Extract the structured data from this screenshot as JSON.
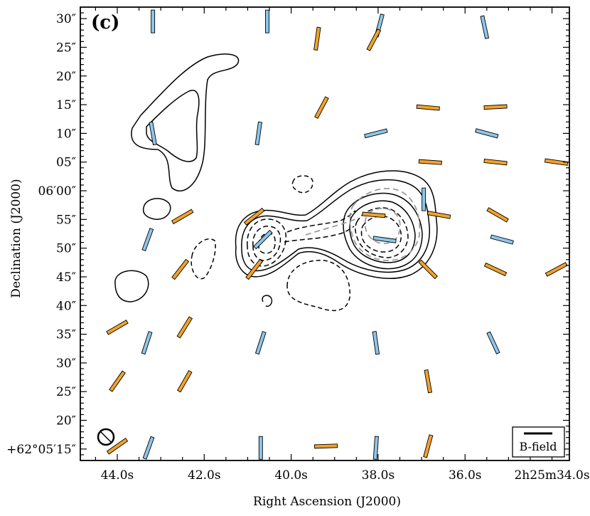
{
  "chart_data": {
    "type": "scatter",
    "panel_label": "(c)",
    "xlabel": "Right Ascension (J2000)",
    "ylabel": "Declination (J2000)",
    "x_ticks": [
      "44.0s",
      "42.0s",
      "40.0s",
      "38.0s",
      "36.0s",
      "2h25m34.0s"
    ],
    "x_tick_values_s": [
      44.0,
      42.0,
      40.0,
      38.0,
      36.0,
      34.0
    ],
    "xlim_s": [
      44.85,
      33.6
    ],
    "y_ticks": [
      "30″",
      "25″",
      "20″",
      "15″",
      "10″",
      "05″",
      "06′00″",
      "55″",
      "50″",
      "45″",
      "40″",
      "35″",
      "30″",
      "25″",
      "20″",
      "+62°05′15″"
    ],
    "y_tick_values_arcsec": [
      390,
      385,
      380,
      375,
      370,
      365,
      360,
      355,
      350,
      345,
      340,
      335,
      330,
      325,
      320,
      315
    ],
    "ylim_arcsec": [
      313,
      392
    ],
    "legend": {
      "label": "B-field",
      "placement": "bottom-right"
    },
    "colors": {
      "blue": "#8ec6ea",
      "orange": "#f2a22c",
      "contour_solid": "#000000",
      "contour_dashed": "#000000",
      "contour_gray": "#9a9a9a",
      "frame": "#000000"
    },
    "vector_series": [
      {
        "color": "blue",
        "vectors": [
          {
            "ra_s": 43.18,
            "dec": 389.5,
            "pa": 0
          },
          {
            "ra_s": 40.55,
            "dec": 389.5,
            "pa": 0
          },
          {
            "ra_s": 37.97,
            "dec": 388.8,
            "pa": 15
          },
          {
            "ra_s": 35.55,
            "dec": 388.5,
            "pa": -12
          },
          {
            "ra_s": 43.18,
            "dec": 370.0,
            "pa": -10
          },
          {
            "ra_s": 40.75,
            "dec": 370.0,
            "pa": 8
          },
          {
            "ra_s": 38.05,
            "dec": 370.0,
            "pa": 76
          },
          {
            "ra_s": 35.5,
            "dec": 370.0,
            "pa": -75
          },
          {
            "ra_s": 43.3,
            "dec": 351.5,
            "pa": 20
          },
          {
            "ra_s": 40.65,
            "dec": 351.5,
            "pa": 45
          },
          {
            "ra_s": 37.85,
            "dec": 351.5,
            "pa": -82
          },
          {
            "ra_s": 35.15,
            "dec": 351.5,
            "pa": -75
          },
          {
            "ra_s": 43.32,
            "dec": 333.5,
            "pa": 18
          },
          {
            "ra_s": 40.7,
            "dec": 333.5,
            "pa": 18
          },
          {
            "ra_s": 38.05,
            "dec": 333.5,
            "pa": -8
          },
          {
            "ra_s": 35.35,
            "dec": 333.5,
            "pa": -25
          },
          {
            "ra_s": 43.28,
            "dec": 315.2,
            "pa": 20
          },
          {
            "ra_s": 40.7,
            "dec": 315.2,
            "pa": 0
          },
          {
            "ra_s": 38.05,
            "dec": 315.2,
            "pa": 4
          },
          {
            "ra_s": 36.95,
            "dec": 358.5,
            "pa": 0
          }
        ]
      },
      {
        "color": "orange",
        "vectors": [
          {
            "ra_s": 39.4,
            "dec": 386.5,
            "pa": 8
          },
          {
            "ra_s": 38.1,
            "dec": 386.3,
            "pa": 28
          },
          {
            "ra_s": 39.3,
            "dec": 374.5,
            "pa": 28
          },
          {
            "ra_s": 36.85,
            "dec": 374.5,
            "pa": -85
          },
          {
            "ra_s": 35.3,
            "dec": 374.6,
            "pa": 87
          },
          {
            "ra_s": 36.8,
            "dec": 365.0,
            "pa": -86
          },
          {
            "ra_s": 35.3,
            "dec": 365.0,
            "pa": -84
          },
          {
            "ra_s": 33.9,
            "dec": 365.0,
            "pa": -82
          },
          {
            "ra_s": 42.5,
            "dec": 355.5,
            "pa": 60
          },
          {
            "ra_s": 40.85,
            "dec": 355.5,
            "pa": 52
          },
          {
            "ra_s": 38.1,
            "dec": 355.8,
            "pa": -85
          },
          {
            "ra_s": 36.6,
            "dec": 355.8,
            "pa": -80
          },
          {
            "ra_s": 35.25,
            "dec": 355.8,
            "pa": -60
          },
          {
            "ra_s": 42.55,
            "dec": 346.3,
            "pa": 38
          },
          {
            "ra_s": 40.85,
            "dec": 346.3,
            "pa": 38
          },
          {
            "ra_s": 36.85,
            "dec": 346.3,
            "pa": -45
          },
          {
            "ra_s": 35.3,
            "dec": 346.3,
            "pa": -65
          },
          {
            "ra_s": 33.9,
            "dec": 346.3,
            "pa": 62
          },
          {
            "ra_s": 44.0,
            "dec": 336.2,
            "pa": 60
          },
          {
            "ra_s": 42.45,
            "dec": 336.2,
            "pa": 32
          },
          {
            "ra_s": 44.0,
            "dec": 326.8,
            "pa": 35
          },
          {
            "ra_s": 42.45,
            "dec": 326.8,
            "pa": 30
          },
          {
            "ra_s": 36.85,
            "dec": 326.8,
            "pa": -10
          },
          {
            "ra_s": 44.0,
            "dec": 315.5,
            "pa": 55
          },
          {
            "ra_s": 39.2,
            "dec": 315.5,
            "pa": 88
          },
          {
            "ra_s": 36.85,
            "dec": 315.5,
            "pa": 15
          }
        ]
      }
    ]
  }
}
